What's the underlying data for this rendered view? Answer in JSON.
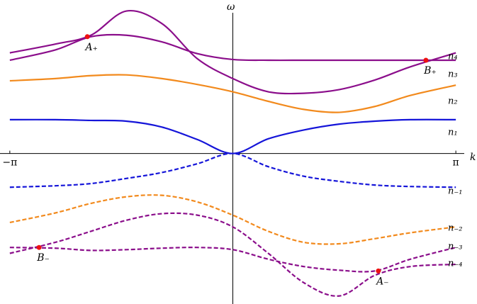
{
  "chart_data": {
    "type": "line",
    "x_label": "k",
    "y_label": "ω",
    "xlim": [
      -3.28,
      3.26
    ],
    "ylim": [
      -2.05,
      2.09
    ],
    "xticks": [
      {
        "value": -3.14159,
        "label": "−π"
      },
      {
        "value": 3.14159,
        "label": "π"
      }
    ],
    "x": [
      -3.14159,
      -2.5,
      -2,
      -1.5,
      -1,
      -0.5,
      0,
      0.5,
      1,
      1.5,
      2,
      2.5,
      3.14159
    ],
    "series": [
      {
        "name": "n₄",
        "color": "#8b0e8b",
        "style": "solid",
        "values": [
          1.37,
          1.49,
          1.61,
          1.94,
          1.77,
          1.29,
          1.02,
          0.84,
          0.82,
          0.87,
          1.0,
          1.18,
          1.37
        ]
      },
      {
        "name": "n₃",
        "color": "#8b0e8b",
        "style": "solid",
        "values": [
          1.27,
          1.41,
          1.59,
          1.61,
          1.52,
          1.36,
          1.28,
          1.27,
          1.27,
          1.27,
          1.27,
          1.27,
          1.27
        ]
      },
      {
        "name": "n₂",
        "color": "#f28a1d",
        "style": "solid",
        "values": [
          0.99,
          1.02,
          1.06,
          1.07,
          1.02,
          0.94,
          0.84,
          0.71,
          0.6,
          0.56,
          0.64,
          0.79,
          0.93
        ]
      },
      {
        "name": "n₁",
        "color": "#1515d9",
        "style": "solid",
        "values": [
          0.46,
          0.46,
          0.45,
          0.44,
          0.36,
          0.19,
          0,
          0.2,
          0.32,
          0.4,
          0.44,
          0.46,
          0.46
        ]
      },
      {
        "name": "n₋₁",
        "color": "#1515d9",
        "style": "dashed",
        "values": [
          -0.46,
          -0.44,
          -0.41,
          -0.34,
          -0.26,
          -0.14,
          0,
          -0.18,
          -0.31,
          -0.38,
          -0.43,
          -0.45,
          -0.46
        ]
      },
      {
        "name": "n₋₂",
        "color": "#f28a1d",
        "style": "dashed",
        "values": [
          -0.94,
          -0.81,
          -0.68,
          -0.59,
          -0.57,
          -0.66,
          -0.84,
          -1.06,
          -1.21,
          -1.23,
          -1.16,
          -1.08,
          -1.0
        ]
      },
      {
        "name": "n₋₃",
        "color": "#8b0e8b",
        "style": "dashed",
        "values": [
          -1.28,
          -1.29,
          -1.32,
          -1.31,
          -1.29,
          -1.28,
          -1.31,
          -1.44,
          -1.54,
          -1.59,
          -1.6,
          -1.44,
          -1.28
        ]
      },
      {
        "name": "n₋₄",
        "color": "#8b0e8b",
        "style": "dashed",
        "values": [
          -1.36,
          -1.21,
          -1.06,
          -0.91,
          -0.82,
          -0.84,
          -1.0,
          -1.36,
          -1.76,
          -1.94,
          -1.66,
          -1.54,
          -1.51
        ]
      }
    ],
    "points_color": "#ee1111",
    "points": [
      {
        "label": "A₊",
        "x": -2.05,
        "y": 1.59
      },
      {
        "label": "B₊",
        "x": 2.72,
        "y": 1.27
      },
      {
        "label": "B₋",
        "x": -2.73,
        "y": -1.28
      },
      {
        "label": "A₋",
        "x": 2.05,
        "y": -1.6
      }
    ]
  }
}
